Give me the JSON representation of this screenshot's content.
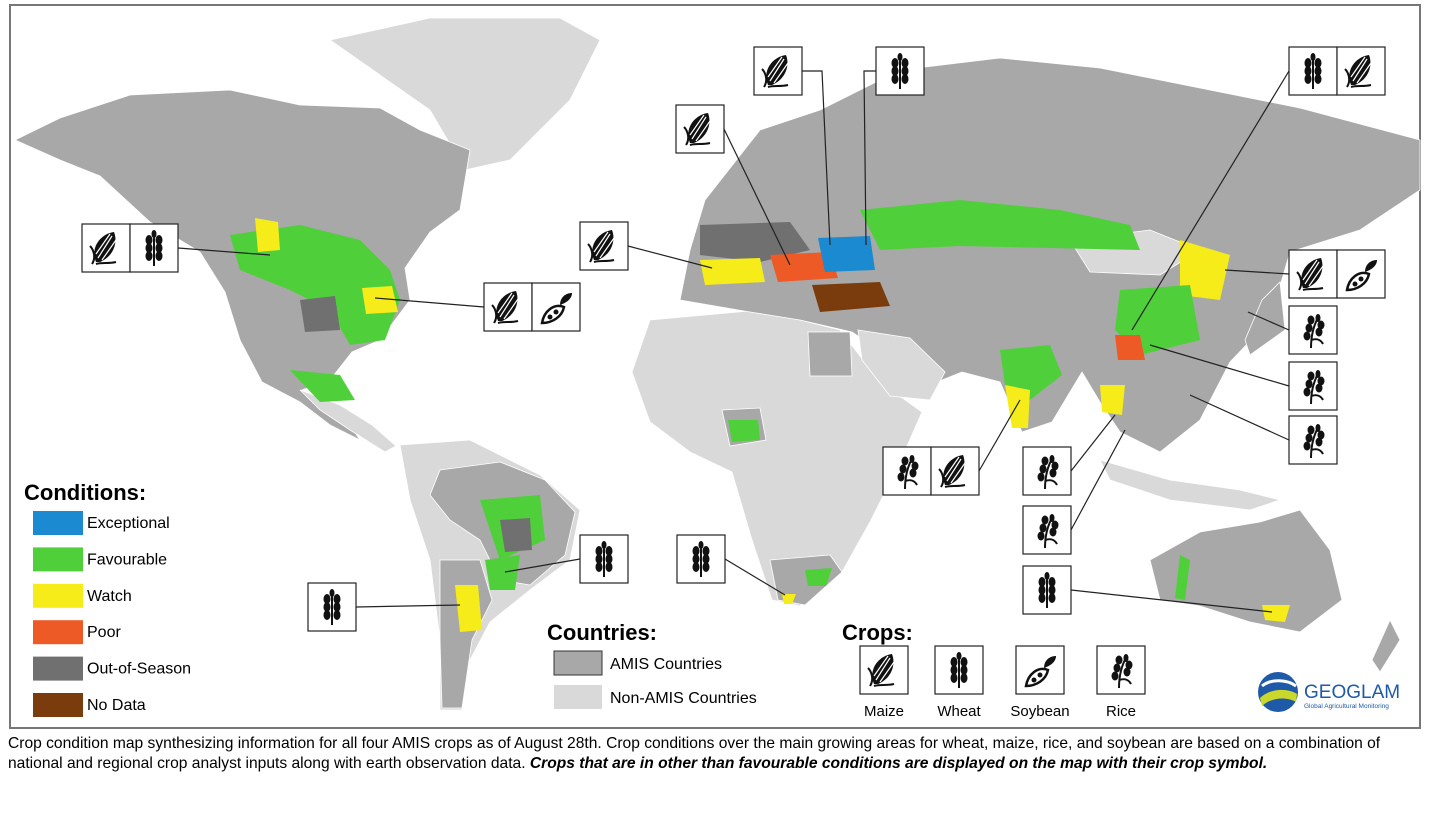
{
  "legend_conditions": {
    "title": "Conditions:",
    "items": [
      {
        "label": "Exceptional",
        "color": "#1c8ad0"
      },
      {
        "label": "Favourable",
        "color": "#4fcf3a"
      },
      {
        "label": "Watch",
        "color": "#f5ec1a"
      },
      {
        "label": "Poor",
        "color": "#ee5a25"
      },
      {
        "label": "Out-of-Season",
        "color": "#707070"
      },
      {
        "label": "No Data",
        "color": "#7a3c0c"
      }
    ]
  },
  "legend_countries": {
    "title": "Countries:",
    "items": [
      {
        "label": "AMIS Countries",
        "color": "#a8a8a8"
      },
      {
        "label": "Non-AMIS Countries",
        "color": "#d9d9d9"
      }
    ]
  },
  "legend_crops": {
    "title": "Crops:",
    "items": [
      "Maize",
      "Wheat",
      "Soybean",
      "Rice"
    ]
  },
  "logo": {
    "name": "GEOGLAM",
    "tagline": "Global Agricultural Monitoring"
  },
  "caption": {
    "text": "Crop condition map synthesizing information for all four AMIS crops as of August 28th. Crop conditions over the main growing areas for wheat, maize, rice, and soybean are based on a combination of national and regional crop analyst inputs along with earth observation data. ",
    "emphasis": "Crops that are in other than favourable conditions are displayed on the map with their crop symbol."
  }
}
